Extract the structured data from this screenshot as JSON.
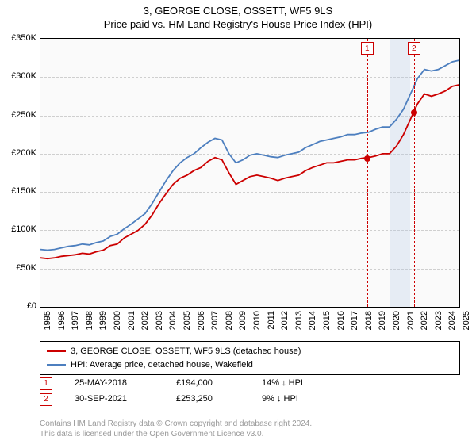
{
  "title": "3, GEORGE CLOSE, OSSETT, WF5 9LS",
  "subtitle": "Price paid vs. HM Land Registry's House Price Index (HPI)",
  "chart": {
    "type": "line",
    "background_color": "#fafafa",
    "grid_color": "#cfcfcf",
    "border_color": "#000000",
    "y": {
      "min": 0,
      "max": 350000,
      "step": 50000,
      "labels": [
        "£0",
        "£50K",
        "£100K",
        "£150K",
        "£200K",
        "£250K",
        "£300K",
        "£350K"
      ]
    },
    "x": {
      "min": 1995,
      "max": 2025,
      "labels": [
        "1995",
        "1996",
        "1997",
        "1998",
        "1999",
        "2000",
        "2001",
        "2002",
        "2003",
        "2004",
        "2005",
        "2006",
        "2007",
        "2008",
        "2009",
        "2010",
        "2011",
        "2012",
        "2013",
        "2014",
        "2015",
        "2016",
        "2017",
        "2018",
        "2019",
        "2020",
        "2021",
        "2022",
        "2023",
        "2024",
        "2025"
      ]
    },
    "series": [
      {
        "name": "3, GEORGE CLOSE, OSSETT, WF5 9LS (detached house)",
        "color": "#cc0000",
        "width": 1.8,
        "points": [
          [
            1995,
            64000
          ],
          [
            1995.5,
            63000
          ],
          [
            1996,
            64000
          ],
          [
            1996.5,
            66000
          ],
          [
            1997,
            67000
          ],
          [
            1997.5,
            68000
          ],
          [
            1998,
            70000
          ],
          [
            1998.5,
            69000
          ],
          [
            1999,
            72000
          ],
          [
            1999.5,
            74000
          ],
          [
            2000,
            80000
          ],
          [
            2000.5,
            82000
          ],
          [
            2001,
            90000
          ],
          [
            2001.5,
            95000
          ],
          [
            2002,
            100000
          ],
          [
            2002.5,
            108000
          ],
          [
            2003,
            120000
          ],
          [
            2003.5,
            135000
          ],
          [
            2004,
            148000
          ],
          [
            2004.5,
            160000
          ],
          [
            2005,
            168000
          ],
          [
            2005.5,
            172000
          ],
          [
            2006,
            178000
          ],
          [
            2006.5,
            182000
          ],
          [
            2007,
            190000
          ],
          [
            2007.5,
            195000
          ],
          [
            2008,
            192000
          ],
          [
            2008.5,
            175000
          ],
          [
            2009,
            160000
          ],
          [
            2009.5,
            165000
          ],
          [
            2010,
            170000
          ],
          [
            2010.5,
            172000
          ],
          [
            2011,
            170000
          ],
          [
            2011.5,
            168000
          ],
          [
            2012,
            165000
          ],
          [
            2012.5,
            168000
          ],
          [
            2013,
            170000
          ],
          [
            2013.5,
            172000
          ],
          [
            2014,
            178000
          ],
          [
            2014.5,
            182000
          ],
          [
            2015,
            185000
          ],
          [
            2015.5,
            188000
          ],
          [
            2016,
            188000
          ],
          [
            2016.5,
            190000
          ],
          [
            2017,
            192000
          ],
          [
            2017.5,
            192000
          ],
          [
            2018,
            194000
          ],
          [
            2018.5,
            195000
          ],
          [
            2019,
            197000
          ],
          [
            2019.5,
            200000
          ],
          [
            2020,
            200000
          ],
          [
            2020.5,
            210000
          ],
          [
            2021,
            225000
          ],
          [
            2021.5,
            245000
          ],
          [
            2022,
            265000
          ],
          [
            2022.5,
            278000
          ],
          [
            2023,
            275000
          ],
          [
            2023.5,
            278000
          ],
          [
            2024,
            282000
          ],
          [
            2024.5,
            288000
          ],
          [
            2025,
            290000
          ]
        ]
      },
      {
        "name": "HPI: Average price, detached house, Wakefield",
        "color": "#4d7fbf",
        "width": 1.8,
        "points": [
          [
            1995,
            75000
          ],
          [
            1995.5,
            74000
          ],
          [
            1996,
            75000
          ],
          [
            1996.5,
            77000
          ],
          [
            1997,
            79000
          ],
          [
            1997.5,
            80000
          ],
          [
            1998,
            82000
          ],
          [
            1998.5,
            81000
          ],
          [
            1999,
            84000
          ],
          [
            1999.5,
            86000
          ],
          [
            2000,
            92000
          ],
          [
            2000.5,
            95000
          ],
          [
            2001,
            102000
          ],
          [
            2001.5,
            108000
          ],
          [
            2002,
            115000
          ],
          [
            2002.5,
            122000
          ],
          [
            2003,
            135000
          ],
          [
            2003.5,
            150000
          ],
          [
            2004,
            165000
          ],
          [
            2004.5,
            178000
          ],
          [
            2005,
            188000
          ],
          [
            2005.5,
            195000
          ],
          [
            2006,
            200000
          ],
          [
            2006.5,
            208000
          ],
          [
            2007,
            215000
          ],
          [
            2007.5,
            220000
          ],
          [
            2008,
            218000
          ],
          [
            2008.5,
            200000
          ],
          [
            2009,
            188000
          ],
          [
            2009.5,
            192000
          ],
          [
            2010,
            198000
          ],
          [
            2010.5,
            200000
          ],
          [
            2011,
            198000
          ],
          [
            2011.5,
            196000
          ],
          [
            2012,
            195000
          ],
          [
            2012.5,
            198000
          ],
          [
            2013,
            200000
          ],
          [
            2013.5,
            202000
          ],
          [
            2014,
            208000
          ],
          [
            2014.5,
            212000
          ],
          [
            2015,
            216000
          ],
          [
            2015.5,
            218000
          ],
          [
            2016,
            220000
          ],
          [
            2016.5,
            222000
          ],
          [
            2017,
            225000
          ],
          [
            2017.5,
            225000
          ],
          [
            2018,
            227000
          ],
          [
            2018.5,
            228000
          ],
          [
            2019,
            232000
          ],
          [
            2019.5,
            235000
          ],
          [
            2020,
            235000
          ],
          [
            2020.5,
            245000
          ],
          [
            2021,
            258000
          ],
          [
            2021.5,
            278000
          ],
          [
            2022,
            298000
          ],
          [
            2022.5,
            310000
          ],
          [
            2023,
            308000
          ],
          [
            2023.5,
            310000
          ],
          [
            2024,
            315000
          ],
          [
            2024.5,
            320000
          ],
          [
            2025,
            322000
          ]
        ]
      }
    ],
    "markers": [
      {
        "id": "1",
        "x": 2018.4,
        "y": 194000,
        "color": "#cc0000"
      },
      {
        "id": "2",
        "x": 2021.75,
        "y": 253250,
        "color": "#cc0000"
      }
    ],
    "band": {
      "from": 2020,
      "to": 2021.5,
      "color": "rgba(180,200,230,0.28)"
    }
  },
  "legend": {
    "items": [
      {
        "color": "#cc0000",
        "label": "3, GEORGE CLOSE, OSSETT, WF5 9LS (detached house)"
      },
      {
        "color": "#4d7fbf",
        "label": "HPI: Average price, detached house, Wakefield"
      }
    ]
  },
  "events": [
    {
      "id": "1",
      "color": "#cc0000",
      "date": "25-MAY-2018",
      "price": "£194,000",
      "delta": "14% ↓ HPI"
    },
    {
      "id": "2",
      "color": "#cc0000",
      "date": "30-SEP-2021",
      "price": "£253,250",
      "delta": "9% ↓ HPI"
    }
  ],
  "footer": {
    "line1": "Contains HM Land Registry data © Crown copyright and database right 2024.",
    "line2": "This data is licensed under the Open Government Licence v3.0."
  }
}
